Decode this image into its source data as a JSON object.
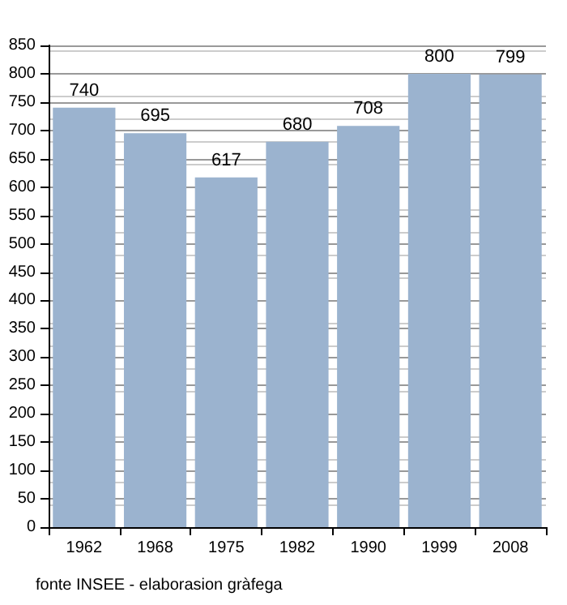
{
  "chart_data": {
    "type": "bar",
    "categories": [
      "1962",
      "1968",
      "1975",
      "1982",
      "1990",
      "1999",
      "2008"
    ],
    "values": [
      740,
      695,
      617,
      680,
      708,
      800,
      799
    ],
    "color": "#9bb3cf",
    "data_labels": true,
    "ylim": [
      0,
      850
    ],
    "yticks": [
      0,
      50,
      100,
      150,
      200,
      250,
      300,
      350,
      400,
      450,
      500,
      550,
      600,
      650,
      700,
      750,
      800,
      850
    ],
    "grid": "y",
    "annotations": [
      "fonte INSEE - elaborasion gràfega"
    ]
  }
}
